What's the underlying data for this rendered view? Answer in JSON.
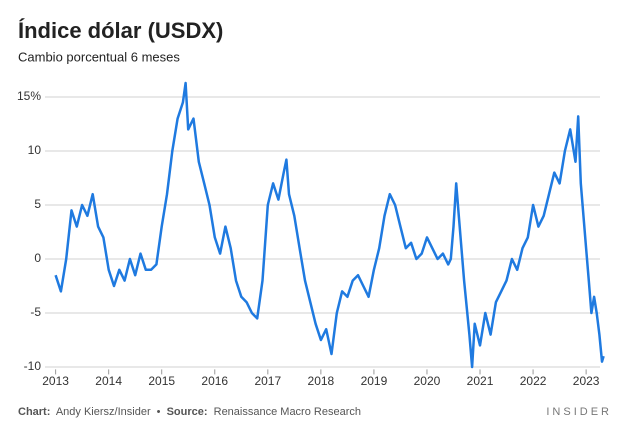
{
  "chart_data": {
    "type": "line",
    "title": "Índice dólar (USDX)",
    "subtitle": "Cambio porcentual 6 meses",
    "credit_label": "Chart:",
    "credit": "Andy Kiersz/Insider",
    "separator": "•",
    "source_label": "Source:",
    "source": "Renaissance Macro Research",
    "brand": "INSIDER",
    "x": [
      2013.0,
      2013.1,
      2013.2,
      2013.3,
      2013.4,
      2013.5,
      2013.6,
      2013.7,
      2013.8,
      2013.9,
      2014.0,
      2014.1,
      2014.2,
      2014.3,
      2014.4,
      2014.5,
      2014.6,
      2014.7,
      2014.8,
      2014.9,
      2015.0,
      2015.1,
      2015.2,
      2015.3,
      2015.4,
      2015.45,
      2015.5,
      2015.6,
      2015.7,
      2015.8,
      2015.9,
      2016.0,
      2016.1,
      2016.2,
      2016.3,
      2016.4,
      2016.5,
      2016.6,
      2016.7,
      2016.8,
      2016.9,
      2017.0,
      2017.1,
      2017.2,
      2017.3,
      2017.35,
      2017.4,
      2017.5,
      2017.6,
      2017.7,
      2017.8,
      2017.9,
      2018.0,
      2018.1,
      2018.2,
      2018.3,
      2018.4,
      2018.5,
      2018.6,
      2018.7,
      2018.8,
      2018.9,
      2019.0,
      2019.1,
      2019.2,
      2019.3,
      2019.4,
      2019.5,
      2019.6,
      2019.7,
      2019.8,
      2019.9,
      2020.0,
      2020.1,
      2020.2,
      2020.3,
      2020.4,
      2020.45,
      2020.5,
      2020.55,
      2020.6,
      2020.7,
      2020.8,
      2020.85,
      2020.9,
      2021.0,
      2021.1,
      2021.2,
      2021.3,
      2021.4,
      2021.5,
      2021.6,
      2021.7,
      2021.8,
      2021.9,
      2022.0,
      2022.1,
      2022.2,
      2022.3,
      2022.4,
      2022.5,
      2022.6,
      2022.7,
      2022.8,
      2022.85,
      2022.9,
      2023.0,
      2023.05,
      2023.1,
      2023.15,
      2023.2,
      2023.25,
      2023.3,
      2023.33
    ],
    "series": [
      {
        "name": "USDX",
        "color": "#1f7ae0",
        "values": [
          -1.5,
          -3,
          0,
          4.5,
          3,
          5,
          4,
          6,
          3,
          2,
          -1,
          -2.5,
          -1,
          -2,
          0,
          -1.5,
          0.5,
          -1,
          -1,
          -0.5,
          3,
          6,
          10,
          13,
          14.5,
          16.3,
          12,
          13,
          9,
          7,
          5,
          2,
          0.5,
          3,
          1,
          -2,
          -3.5,
          -4,
          -5,
          -5.5,
          -2,
          5,
          7,
          5.5,
          8,
          9.2,
          6,
          4,
          1,
          -2,
          -4,
          -6,
          -7.5,
          -6.5,
          -8.8,
          -5,
          -3,
          -3.5,
          -2,
          -1.5,
          -2.5,
          -3.5,
          -1,
          1,
          4,
          6,
          5,
          3,
          1,
          1.5,
          0,
          0.5,
          2,
          1,
          0,
          0.5,
          -0.5,
          0,
          3,
          7,
          4,
          -2,
          -7,
          -10,
          -6,
          -8,
          -5,
          -7,
          -4,
          -3,
          -2,
          0,
          -1,
          1,
          2,
          5,
          3,
          4,
          6,
          8,
          7,
          10,
          12,
          9,
          13.2,
          7,
          1,
          -2,
          -5,
          -3.5,
          -5,
          -7,
          -9.5,
          -9
        ]
      }
    ],
    "xlim": [
      2012.8,
      2023.45
    ],
    "xticks": [
      2013,
      2014,
      2015,
      2016,
      2017,
      2018,
      2019,
      2020,
      2021,
      2022,
      2023
    ],
    "ylim": [
      -10.5,
      17
    ],
    "yticks": [
      -10,
      -5,
      0,
      5,
      10,
      {
        "value": 15,
        "label": "15%"
      }
    ],
    "grid": true
  }
}
